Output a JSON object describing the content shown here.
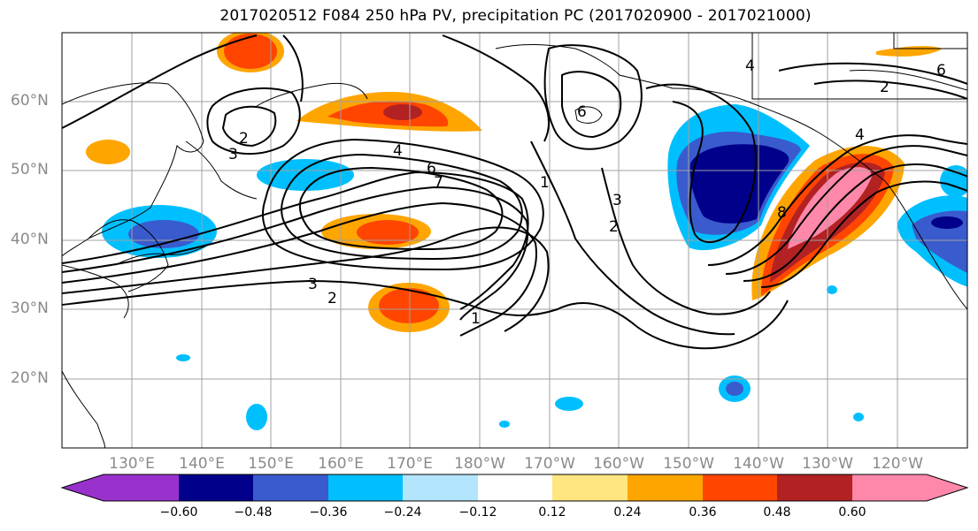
{
  "title": "2017020512 F084 250 hPa PV, precipitation PC (2017020900 - 2017021000)",
  "latitude_labels": [
    "60°N",
    "50°N",
    "40°N",
    "30°N",
    "20°N"
  ],
  "longitude_labels": [
    "130°E",
    "140°E",
    "150°E",
    "160°E",
    "170°E",
    "180°W",
    "170°W",
    "160°W",
    "150°W",
    "140°W",
    "130°W",
    "120°W"
  ],
  "contour_labels": [
    "1",
    "2",
    "3",
    "4",
    "6",
    "7",
    "8"
  ],
  "colorbar": {
    "ticks": [
      "−0.60",
      "−0.48",
      "−0.36",
      "−0.24",
      "−0.12",
      "0.12",
      "0.24",
      "0.36",
      "0.48",
      "0.60"
    ],
    "colors": [
      "#9932cc",
      "#00008b",
      "#3a5bcd",
      "#00bfff",
      "#b3e5fc",
      "#ffffff",
      "#ffe680",
      "#ffa500",
      "#ff4500",
      "#b22222",
      "#ff88aa"
    ]
  }
}
